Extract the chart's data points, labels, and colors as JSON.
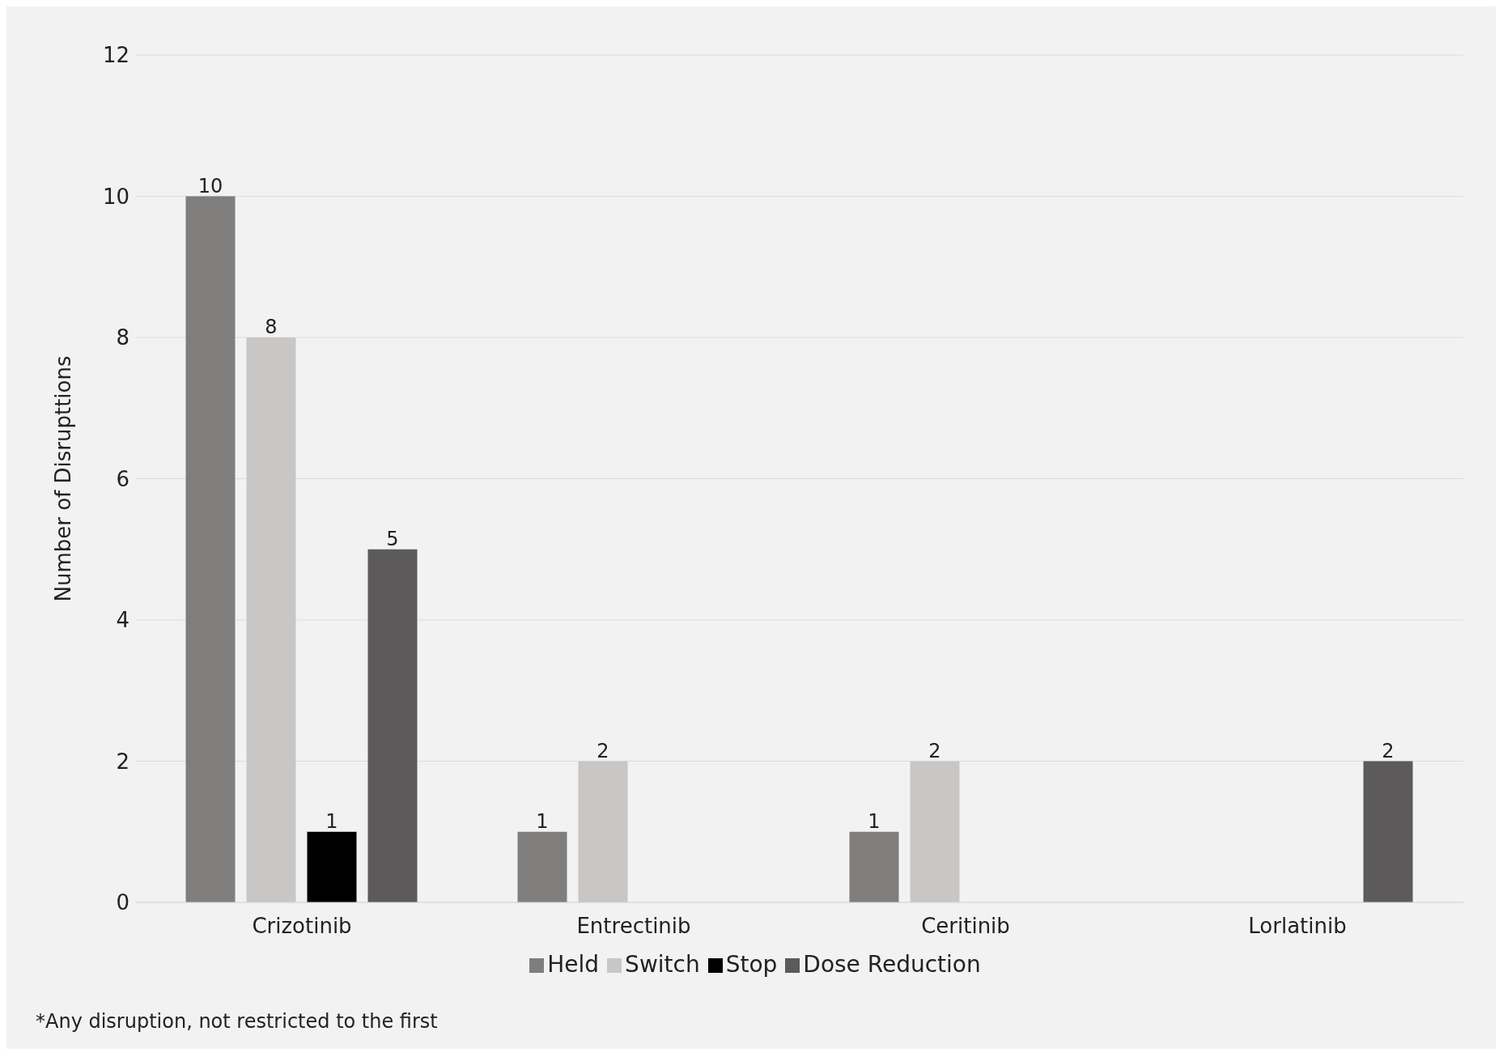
{
  "chart_data": {
    "type": "bar",
    "ylabel": "Number of Disrupttions",
    "categories": [
      "Crizotinib",
      "Entrectinib",
      "Ceritinib",
      "Lorlatinib"
    ],
    "series": [
      {
        "name": "Held",
        "color": "#7f7e7c",
        "values": [
          10,
          1,
          1,
          null
        ]
      },
      {
        "name": "Switch",
        "color": "#c9c7c5",
        "values": [
          8,
          2,
          2,
          null
        ]
      },
      {
        "name": "Stop",
        "color": "#000000",
        "values": [
          1,
          null,
          null,
          null
        ]
      },
      {
        "name": "Dose Reduction",
        "color": "#5c5a5a",
        "values": [
          5,
          null,
          null,
          2
        ]
      }
    ],
    "ylim": [
      0,
      12
    ],
    "yticks": [
      0,
      2,
      4,
      6,
      8,
      10,
      12
    ],
    "grid": "y",
    "legend": "bottom",
    "data_labels": true,
    "annotations": [
      "*Any disruption, not restricted to the first"
    ]
  }
}
